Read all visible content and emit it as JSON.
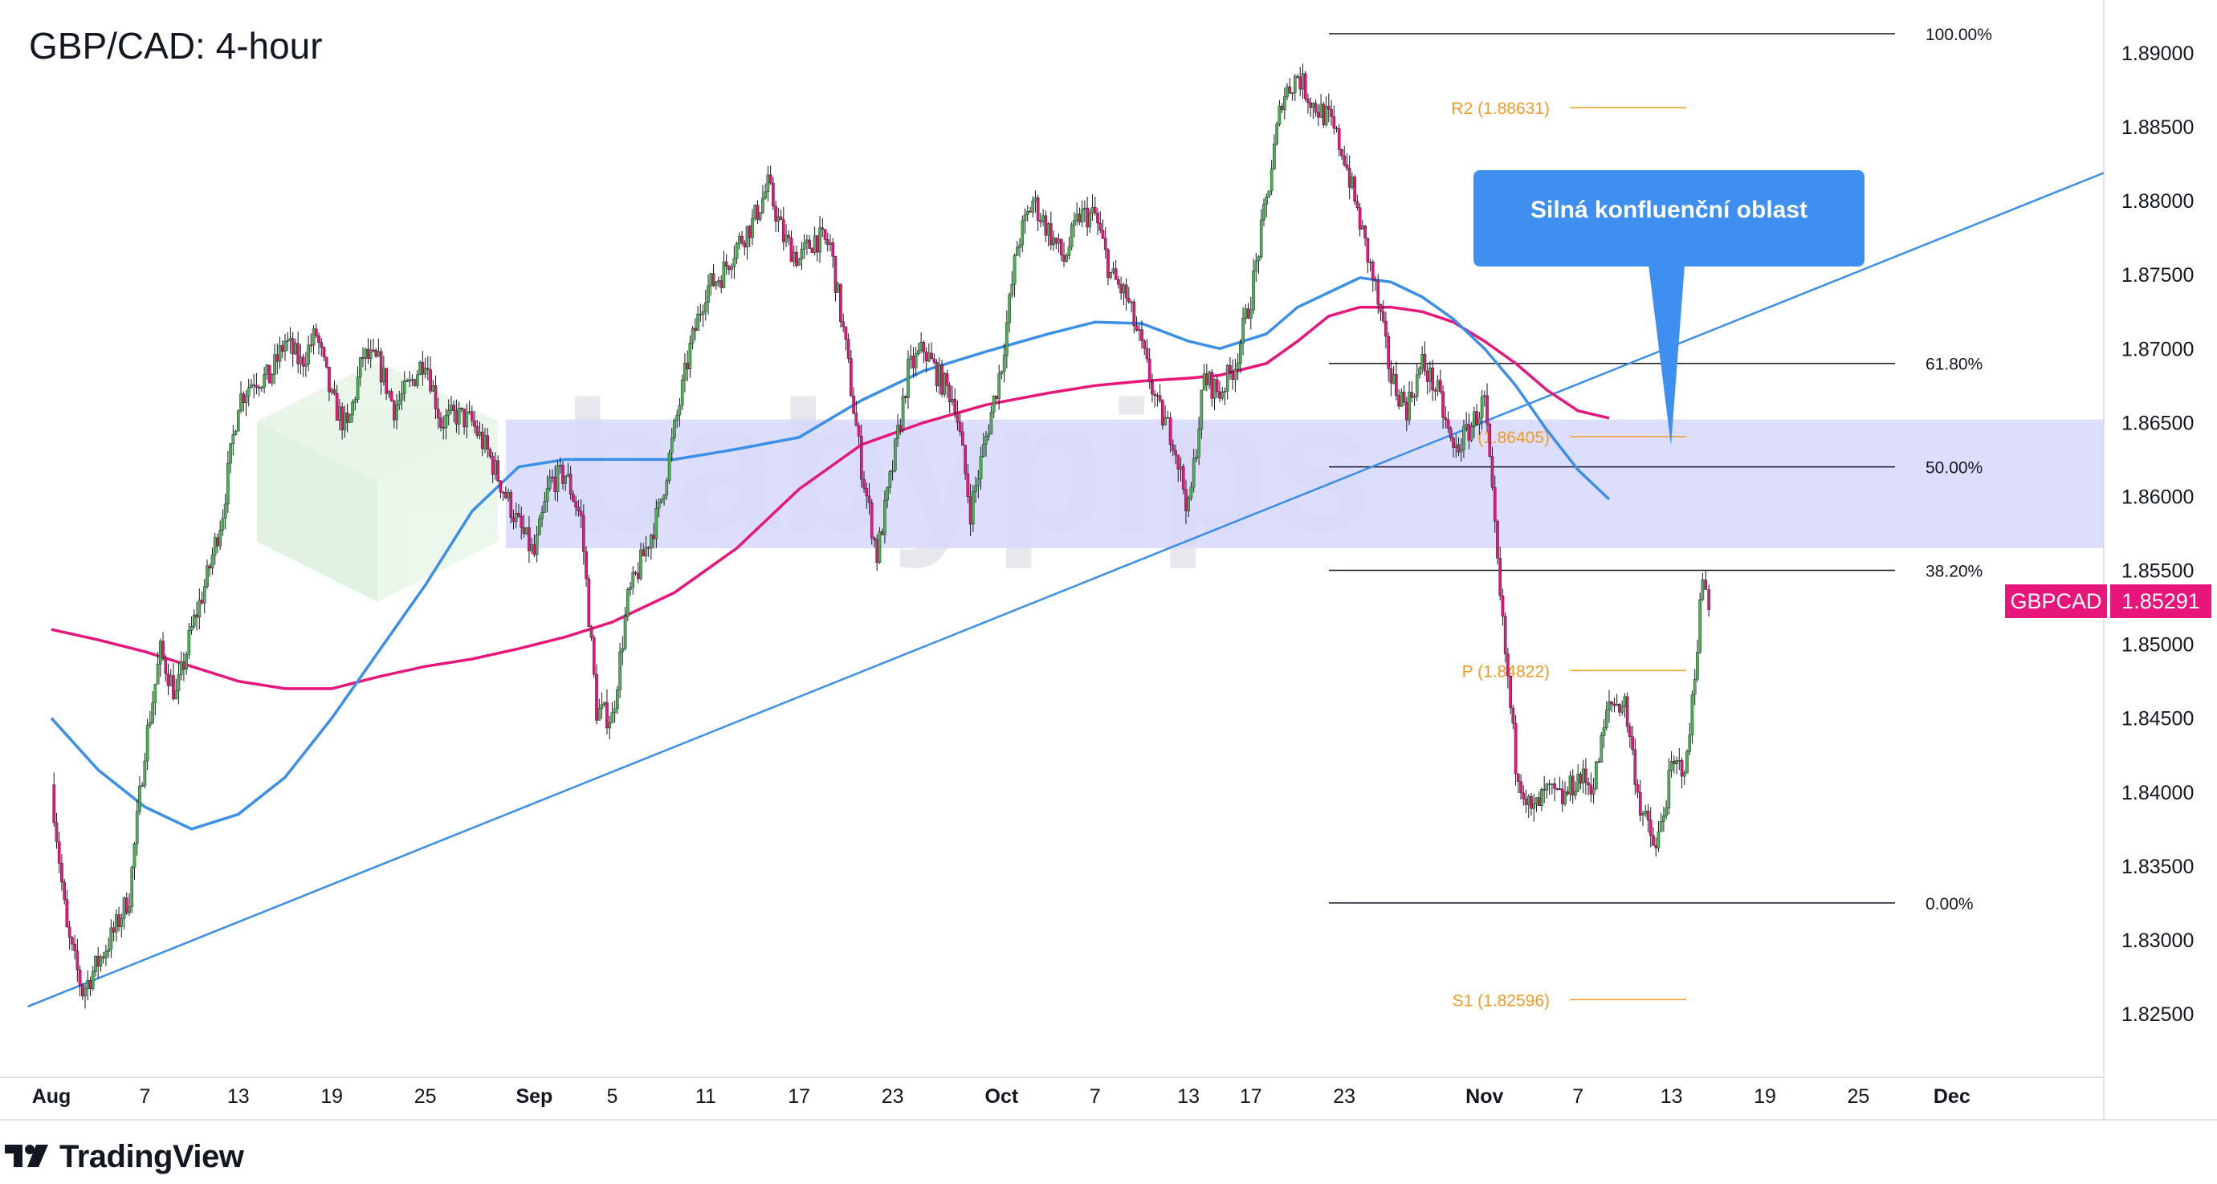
{
  "title": "GBP/CAD: 4-hour",
  "callout": "Silná konfluenční oblast",
  "symbol_badge": {
    "label": "GBPCAD",
    "value": "1.85291",
    "color": "#e8157a"
  },
  "watermark": "babypips",
  "footer": {
    "brand": "TradingView"
  },
  "colors": {
    "up": "#4caf50",
    "down": "#e8157a",
    "ma_fast": "#3a8fe8",
    "ma_slow": "#e8157a",
    "trendline": "#3a8fe8",
    "zone": "#d6d8fb",
    "fib": "#131722",
    "pivot": "#f59b23"
  },
  "chart_data": {
    "type": "candlestick",
    "ylim": [
      1.8205,
      1.8925
    ],
    "y_ticks": [
      "1.89000",
      "1.88500",
      "1.88000",
      "1.87500",
      "1.87000",
      "1.86500",
      "1.86000",
      "1.85500",
      "1.85000",
      "1.84500",
      "1.84000",
      "1.83500",
      "1.83000",
      "1.82500"
    ],
    "x_ticks": [
      {
        "label": "Aug",
        "bold": true,
        "day": 0
      },
      {
        "label": "7",
        "day": 6
      },
      {
        "label": "13",
        "day": 12
      },
      {
        "label": "19",
        "day": 18
      },
      {
        "label": "25",
        "day": 24
      },
      {
        "label": "Sep",
        "bold": true,
        "day": 31
      },
      {
        "label": "5",
        "day": 36
      },
      {
        "label": "11",
        "day": 42
      },
      {
        "label": "17",
        "day": 48
      },
      {
        "label": "23",
        "day": 54
      },
      {
        "label": "Oct",
        "bold": true,
        "day": 61
      },
      {
        "label": "7",
        "day": 67
      },
      {
        "label": "13",
        "day": 73
      },
      {
        "label": "17",
        "day": 77
      },
      {
        "label": "23",
        "day": 83
      },
      {
        "label": "Nov",
        "bold": true,
        "day": 92
      },
      {
        "label": "7",
        "day": 98
      },
      {
        "label": "13",
        "day": 104
      },
      {
        "label": "19",
        "day": 110
      },
      {
        "label": "25",
        "day": 116
      },
      {
        "label": "Dec",
        "bold": true,
        "day": 122
      }
    ],
    "price_path": [
      [
        0,
        1.8405
      ],
      [
        1,
        1.8305
      ],
      [
        2,
        1.8265
      ],
      [
        3,
        1.8285
      ],
      [
        4,
        1.8305
      ],
      [
        5,
        1.833
      ],
      [
        6,
        1.843
      ],
      [
        7,
        1.8495
      ],
      [
        8,
        1.8465
      ],
      [
        9,
        1.851
      ],
      [
        10,
        1.8545
      ],
      [
        11,
        1.859
      ],
      [
        12,
        1.8665
      ],
      [
        13,
        1.868
      ],
      [
        14,
        1.868
      ],
      [
        15,
        1.8705
      ],
      [
        16,
        1.869
      ],
      [
        17,
        1.871
      ],
      [
        18,
        1.8665
      ],
      [
        19,
        1.8645
      ],
      [
        20,
        1.8695
      ],
      [
        21,
        1.869
      ],
      [
        22,
        1.866
      ],
      [
        23,
        1.8675
      ],
      [
        24,
        1.8695
      ],
      [
        25,
        1.865
      ],
      [
        26,
        1.8655
      ],
      [
        27,
        1.865
      ],
      [
        28,
        1.863
      ],
      [
        29,
        1.8605
      ],
      [
        30,
        1.858
      ],
      [
        31,
        1.856
      ],
      [
        32,
        1.861
      ],
      [
        33,
        1.8615
      ],
      [
        34,
        1.8585
      ],
      [
        35,
        1.8455
      ],
      [
        36,
        1.845
      ],
      [
        37,
        1.853
      ],
      [
        38,
        1.856
      ],
      [
        39,
        1.859
      ],
      [
        40,
        1.8645
      ],
      [
        41,
        1.87
      ],
      [
        42,
        1.874
      ],
      [
        43,
        1.875
      ],
      [
        44,
        1.877
      ],
      [
        45,
        1.8785
      ],
      [
        46,
        1.881
      ],
      [
        47,
        1.8775
      ],
      [
        48,
        1.876
      ],
      [
        49,
        1.8775
      ],
      [
        50,
        1.877
      ],
      [
        51,
        1.87
      ],
      [
        52,
        1.862
      ],
      [
        53,
        1.856
      ],
      [
        54,
        1.862
      ],
      [
        55,
        1.8685
      ],
      [
        56,
        1.87
      ],
      [
        57,
        1.868
      ],
      [
        58,
        1.8665
      ],
      [
        59,
        1.859
      ],
      [
        60,
        1.864
      ],
      [
        61,
        1.869
      ],
      [
        62,
        1.877
      ],
      [
        63,
        1.88
      ],
      [
        64,
        1.878
      ],
      [
        65,
        1.876
      ],
      [
        66,
        1.879
      ],
      [
        67,
        1.879
      ],
      [
        68,
        1.875
      ],
      [
        69,
        1.8735
      ],
      [
        70,
        1.87
      ],
      [
        71,
        1.866
      ],
      [
        72,
        1.864
      ],
      [
        73,
        1.859
      ],
      [
        74,
        1.868
      ],
      [
        75,
        1.867
      ],
      [
        76,
        1.869
      ],
      [
        77,
        1.8735
      ],
      [
        78,
        1.88
      ],
      [
        79,
        1.887
      ],
      [
        80,
        1.8885
      ],
      [
        81,
        1.8865
      ],
      [
        82,
        1.8855
      ],
      [
        83,
        1.883
      ],
      [
        84,
        1.8785
      ],
      [
        85,
        1.874
      ],
      [
        86,
        1.868
      ],
      [
        87,
        1.866
      ],
      [
        88,
        1.869
      ],
      [
        89,
        1.867
      ],
      [
        90,
        1.863
      ],
      [
        91,
        1.8645
      ],
      [
        92,
        1.8665
      ],
      [
        93,
        1.853
      ],
      [
        94,
        1.842
      ],
      [
        95,
        1.8385
      ],
      [
        96,
        1.84
      ],
      [
        97,
        1.8395
      ],
      [
        98,
        1.841
      ],
      [
        99,
        1.8405
      ],
      [
        100,
        1.846
      ],
      [
        101,
        1.846
      ],
      [
        102,
        1.839
      ],
      [
        103,
        1.836
      ],
      [
        104,
        1.8415
      ],
      [
        105,
        1.842
      ],
      [
        106,
        1.8545
      ],
      [
        106.4,
        1.8529
      ]
    ],
    "ma_fast": [
      [
        0,
        1.845
      ],
      [
        3,
        1.8415
      ],
      [
        6,
        1.839
      ],
      [
        9,
        1.8375
      ],
      [
        12,
        1.8385
      ],
      [
        15,
        1.841
      ],
      [
        18,
        1.845
      ],
      [
        21,
        1.8495
      ],
      [
        24,
        1.854
      ],
      [
        27,
        1.859
      ],
      [
        30,
        1.862
      ],
      [
        33,
        1.8625
      ],
      [
        36,
        1.8625
      ],
      [
        40,
        1.8625
      ],
      [
        44,
        1.8632
      ],
      [
        48,
        1.864
      ],
      [
        52,
        1.8665
      ],
      [
        56,
        1.8685
      ],
      [
        60,
        1.8698
      ],
      [
        64,
        1.871
      ],
      [
        67,
        1.8718
      ],
      [
        70,
        1.8717
      ],
      [
        73,
        1.8705
      ],
      [
        75,
        1.87
      ],
      [
        78,
        1.871
      ],
      [
        80,
        1.8728
      ],
      [
        82,
        1.8738
      ],
      [
        84,
        1.8748
      ],
      [
        86,
        1.8745
      ],
      [
        88,
        1.8735
      ],
      [
        90,
        1.872
      ],
      [
        92,
        1.87
      ],
      [
        94,
        1.8675
      ],
      [
        96,
        1.8645
      ],
      [
        98,
        1.8618
      ],
      [
        100,
        1.8598
      ]
    ],
    "ma_slow": [
      [
        0,
        1.851
      ],
      [
        3,
        1.8503
      ],
      [
        6,
        1.8495
      ],
      [
        9,
        1.8485
      ],
      [
        12,
        1.8475
      ],
      [
        15,
        1.847
      ],
      [
        18,
        1.847
      ],
      [
        21,
        1.8478
      ],
      [
        24,
        1.8485
      ],
      [
        27,
        1.849
      ],
      [
        30,
        1.8497
      ],
      [
        33,
        1.8505
      ],
      [
        36,
        1.8515
      ],
      [
        40,
        1.8535
      ],
      [
        44,
        1.8565
      ],
      [
        48,
        1.8605
      ],
      [
        52,
        1.8635
      ],
      [
        56,
        1.865
      ],
      [
        60,
        1.8662
      ],
      [
        64,
        1.867
      ],
      [
        67,
        1.8675
      ],
      [
        70,
        1.8678
      ],
      [
        73,
        1.868
      ],
      [
        75,
        1.8682
      ],
      [
        78,
        1.869
      ],
      [
        80,
        1.8705
      ],
      [
        82,
        1.8722
      ],
      [
        84,
        1.8728
      ],
      [
        86,
        1.8728
      ],
      [
        88,
        1.8725
      ],
      [
        90,
        1.8718
      ],
      [
        92,
        1.8705
      ],
      [
        94,
        1.869
      ],
      [
        96,
        1.8672
      ],
      [
        98,
        1.8658
      ],
      [
        100,
        1.8653
      ]
    ],
    "trendline": {
      "from": [
        -1.5,
        1.8255
      ],
      "to": [
        128,
        1.8803
      ]
    },
    "zone": {
      "top": 1.8652,
      "bottom": 1.8565
    },
    "fib_levels": [
      {
        "label": "100.00%",
        "price": 1.8913
      },
      {
        "label": "61.80%",
        "price": 1.869
      },
      {
        "label": "50.00%",
        "price": 1.862
      },
      {
        "label": "38.20%",
        "price": 1.855
      },
      {
        "label": "0.00%",
        "price": 1.8325
      }
    ],
    "pivots": [
      {
        "label": "R2 (1.88631)",
        "price": 1.88631
      },
      {
        "label": "(1.86405)",
        "price": 1.86405
      },
      {
        "label": "P (1.84822)",
        "price": 1.84822
      },
      {
        "label": "S1 (1.82596)",
        "price": 1.82596
      }
    ],
    "last_price": 1.85291
  }
}
